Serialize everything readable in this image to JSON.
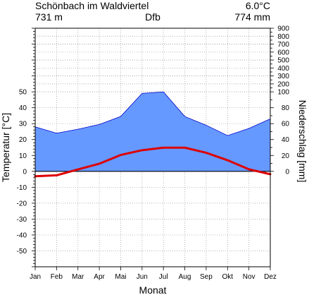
{
  "chart_data": {
    "type": "climate-diagram",
    "station": "Schönbach im Waldviertel",
    "elevation_label": "731 m",
    "climate_class": "Dfb",
    "annual_mean_temp_label": "6.0°C",
    "annual_precip_label": "774 mm",
    "xlabel": "Monat",
    "ylabel_left": "Temperatur [°C]",
    "ylabel_right": "Niederschlag [mm]",
    "categories": [
      "Jan",
      "Feb",
      "Mar",
      "Apr",
      "Mai",
      "Jun",
      "Jul",
      "Aug",
      "Sep",
      "Okt",
      "Nov",
      "Dez"
    ],
    "temperature": [
      -3.1,
      -2.5,
      1.2,
      4.8,
      10.3,
      13.3,
      14.9,
      14.9,
      11.7,
      7.0,
      1.3,
      -1.8
    ],
    "precipitation": [
      56,
      48,
      53,
      59,
      69,
      98,
      100,
      69,
      58,
      45,
      54,
      66
    ],
    "ylim_temp": [
      -60,
      90
    ],
    "ylim_precip": [
      -120,
      900
    ],
    "left_ticks": [
      50,
      40,
      30,
      20,
      10,
      0,
      -10,
      -20,
      -30,
      -40,
      -50
    ],
    "right_ticks": [
      900,
      800,
      700,
      600,
      500,
      400,
      300,
      200,
      100,
      80,
      60,
      40,
      20,
      0
    ],
    "grid": true,
    "colors": {
      "precip_fill": "#6699ff",
      "precip_line": "#0000cc",
      "temp_line": "#dd0000",
      "grid": "#999999"
    }
  }
}
